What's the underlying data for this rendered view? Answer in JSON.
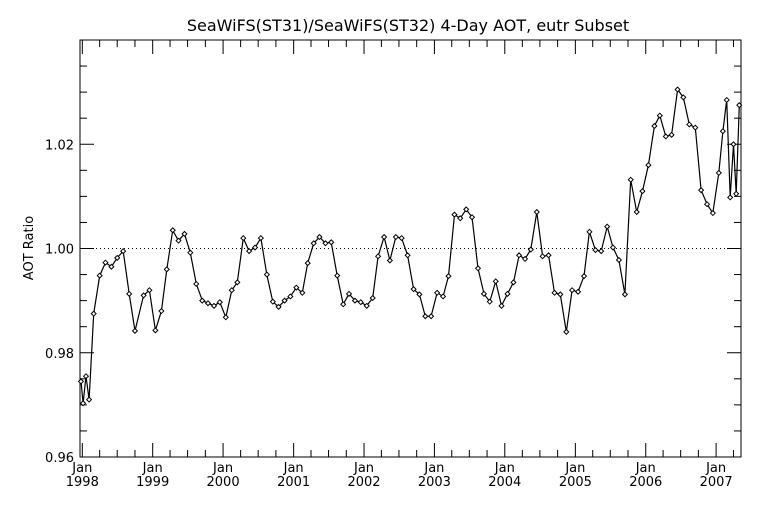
{
  "chart_data": {
    "type": "line",
    "title": "SeaWiFS(ST31)/SeaWiFS(ST32) 4-Day AOT, eutr Subset",
    "xlabel": "",
    "ylabel": "AOT Ratio",
    "xlim": [
      "1997-12-20",
      "2007-05-10"
    ],
    "ylim": [
      0.96,
      1.04
    ],
    "y_ticks": [
      {
        "value": 0.96,
        "label": "0.96"
      },
      {
        "value": 0.98,
        "label": "0.98"
      },
      {
        "value": 1.0,
        "label": "1.00"
      },
      {
        "value": 1.02,
        "label": "1.02"
      }
    ],
    "x_ticks": [
      {
        "date": "1998-01-01",
        "month": "Jan",
        "year": "1998"
      },
      {
        "date": "1999-01-01",
        "month": "Jan",
        "year": "1999"
      },
      {
        "date": "2000-01-01",
        "month": "Jan",
        "year": "2000"
      },
      {
        "date": "2001-01-01",
        "month": "Jan",
        "year": "2001"
      },
      {
        "date": "2002-01-01",
        "month": "Jan",
        "year": "2002"
      },
      {
        "date": "2003-01-01",
        "month": "Jan",
        "year": "2003"
      },
      {
        "date": "2004-01-01",
        "month": "Jan",
        "year": "2004"
      },
      {
        "date": "2005-01-01",
        "month": "Jan",
        "year": "2005"
      },
      {
        "date": "2006-01-01",
        "month": "Jan",
        "year": "2006"
      },
      {
        "date": "2007-01-01",
        "month": "Jan",
        "year": "2007"
      }
    ],
    "reference_line": {
      "y": 1.0,
      "style": "dotted"
    },
    "grid": false,
    "series": [
      {
        "marker": "diamond",
        "color": "#000000",
        "points": [
          [
            "1997-12-25",
            0.9745
          ],
          [
            "1998-01-05",
            0.9703
          ],
          [
            "1998-01-20",
            0.9755
          ],
          [
            "1998-02-05",
            0.971
          ],
          [
            "1998-03-01",
            0.9875
          ],
          [
            "1998-04-01",
            0.9948
          ],
          [
            "1998-05-01",
            0.9973
          ],
          [
            "1998-06-01",
            0.9965
          ],
          [
            "1998-07-01",
            0.9982
          ],
          [
            "1998-08-01",
            0.9995
          ],
          [
            "1998-09-01",
            0.9913
          ],
          [
            "1998-10-01",
            0.9842
          ],
          [
            "1998-11-15",
            0.991
          ],
          [
            "1998-12-15",
            0.992
          ],
          [
            "1999-01-15",
            0.9843
          ],
          [
            "1999-02-15",
            0.988
          ],
          [
            "1999-03-15",
            0.996
          ],
          [
            "1999-04-15",
            1.0035
          ],
          [
            "1999-05-15",
            1.0015
          ],
          [
            "1999-06-15",
            1.0028
          ],
          [
            "1999-07-15",
            0.9992
          ],
          [
            "1999-08-15",
            0.9932
          ],
          [
            "1999-09-15",
            0.99
          ],
          [
            "1999-10-15",
            0.9895
          ],
          [
            "1999-11-15",
            0.989
          ],
          [
            "1999-12-15",
            0.9897
          ],
          [
            "2000-01-15",
            0.9868
          ],
          [
            "2000-02-15",
            0.992
          ],
          [
            "2000-03-15",
            0.9935
          ],
          [
            "2000-04-15",
            1.002
          ],
          [
            "2000-05-15",
            0.9995
          ],
          [
            "2000-06-15",
            1.0002
          ],
          [
            "2000-07-15",
            1.002
          ],
          [
            "2000-08-15",
            0.995
          ],
          [
            "2000-09-15",
            0.9898
          ],
          [
            "2000-10-15",
            0.9888
          ],
          [
            "2000-11-15",
            0.99
          ],
          [
            "2000-12-15",
            0.9908
          ],
          [
            "2001-01-15",
            0.9925
          ],
          [
            "2001-02-15",
            0.9915
          ],
          [
            "2001-03-15",
            0.9972
          ],
          [
            "2001-04-15",
            1.001
          ],
          [
            "2001-05-15",
            1.0022
          ],
          [
            "2001-06-15",
            1.001
          ],
          [
            "2001-07-15",
            1.0012
          ],
          [
            "2001-08-15",
            0.9948
          ],
          [
            "2001-09-15",
            0.9893
          ],
          [
            "2001-10-15",
            0.9913
          ],
          [
            "2001-11-15",
            0.99
          ],
          [
            "2001-12-15",
            0.9897
          ],
          [
            "2002-01-15",
            0.989
          ],
          [
            "2002-02-15",
            0.9905
          ],
          [
            "2002-03-15",
            0.9985
          ],
          [
            "2002-04-15",
            1.0022
          ],
          [
            "2002-05-15",
            0.9977
          ],
          [
            "2002-06-15",
            1.0022
          ],
          [
            "2002-07-15",
            1.002
          ],
          [
            "2002-08-15",
            0.9987
          ],
          [
            "2002-09-15",
            0.9922
          ],
          [
            "2002-10-15",
            0.9912
          ],
          [
            "2002-11-15",
            0.987
          ],
          [
            "2002-12-15",
            0.987
          ],
          [
            "2003-01-15",
            0.9915
          ],
          [
            "2003-02-15",
            0.9908
          ],
          [
            "2003-03-15",
            0.9947
          ],
          [
            "2003-04-15",
            1.0065
          ],
          [
            "2003-05-15",
            1.0058
          ],
          [
            "2003-06-15",
            1.0075
          ],
          [
            "2003-07-15",
            1.006
          ],
          [
            "2003-08-15",
            0.9962
          ],
          [
            "2003-09-15",
            0.9913
          ],
          [
            "2003-10-15",
            0.9898
          ],
          [
            "2003-11-15",
            0.9937
          ],
          [
            "2003-12-15",
            0.989
          ],
          [
            "2004-01-15",
            0.9913
          ],
          [
            "2004-02-15",
            0.9935
          ],
          [
            "2004-03-15",
            0.9987
          ],
          [
            "2004-04-15",
            0.998
          ],
          [
            "2004-05-15",
            0.9998
          ],
          [
            "2004-06-15",
            1.007
          ],
          [
            "2004-07-15",
            0.9985
          ],
          [
            "2004-08-15",
            0.9987
          ],
          [
            "2004-09-15",
            0.9915
          ],
          [
            "2004-10-15",
            0.9912
          ],
          [
            "2004-11-15",
            0.984
          ],
          [
            "2004-12-15",
            0.992
          ],
          [
            "2005-01-15",
            0.9917
          ],
          [
            "2005-02-15",
            0.9947
          ],
          [
            "2005-03-15",
            1.0032
          ],
          [
            "2005-04-15",
            0.9997
          ],
          [
            "2005-05-15",
            0.9995
          ],
          [
            "2005-06-15",
            1.0042
          ],
          [
            "2005-07-15",
            1.0002
          ],
          [
            "2005-08-15",
            0.9978
          ],
          [
            "2005-09-15",
            0.9912
          ],
          [
            "2005-10-15",
            1.0132
          ],
          [
            "2005-11-15",
            1.007
          ],
          [
            "2005-12-15",
            1.011
          ],
          [
            "2006-01-15",
            1.016
          ],
          [
            "2006-02-15",
            1.0235
          ],
          [
            "2006-03-15",
            1.0255
          ],
          [
            "2006-04-15",
            1.0215
          ],
          [
            "2006-05-15",
            1.0218
          ],
          [
            "2006-06-15",
            1.0305
          ],
          [
            "2006-07-15",
            1.029
          ],
          [
            "2006-08-15",
            1.0238
          ],
          [
            "2006-09-15",
            1.0232
          ],
          [
            "2006-10-15",
            1.0112
          ],
          [
            "2006-11-15",
            1.0085
          ],
          [
            "2006-12-15",
            1.0068
          ],
          [
            "2007-01-15",
            1.0145
          ],
          [
            "2007-02-05",
            1.0225
          ],
          [
            "2007-02-25",
            1.0285
          ],
          [
            "2007-03-15",
            1.0098
          ],
          [
            "2007-04-01",
            1.02
          ],
          [
            "2007-04-15",
            1.0105
          ],
          [
            "2007-05-01",
            1.0275
          ]
        ]
      }
    ]
  }
}
